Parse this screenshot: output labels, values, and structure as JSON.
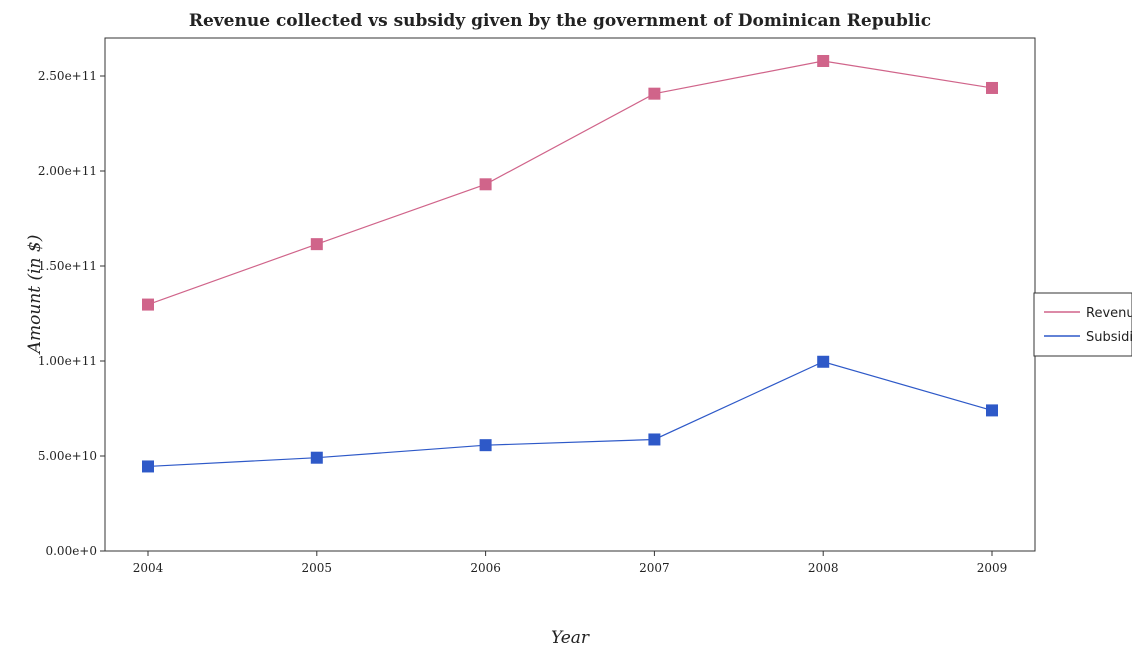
{
  "chart_data": {
    "type": "line",
    "title": "Revenue collected vs subsidy given by the government of Dominican Republic",
    "xlabel": "Year",
    "ylabel": "Amount (in $)",
    "categories": [
      "2004",
      "2005",
      "2006",
      "2007",
      "2008",
      "2009"
    ],
    "y_ticks": [
      0,
      50000000000,
      100000000000,
      150000000000,
      200000000000,
      250000000000
    ],
    "y_tick_labels": [
      "0.00e+0",
      "5.00e+10",
      "1.00e+11",
      "1.50e+11",
      "2.00e+11",
      "2.50e+11"
    ],
    "ylim": [
      0,
      270000000000
    ],
    "grid": false,
    "legend_position": "right",
    "series": [
      {
        "name": "Revenue",
        "color": "#d0648a",
        "marker": "square",
        "values": [
          129700000000,
          161500000000,
          193000000000,
          240700000000,
          257900000000,
          243700000000
        ]
      },
      {
        "name": "Subsidies",
        "color": "#2e59c8",
        "marker": "square",
        "values": [
          44500000000,
          49100000000,
          55700000000,
          58700000000,
          99600000000,
          74000000000
        ]
      }
    ]
  }
}
